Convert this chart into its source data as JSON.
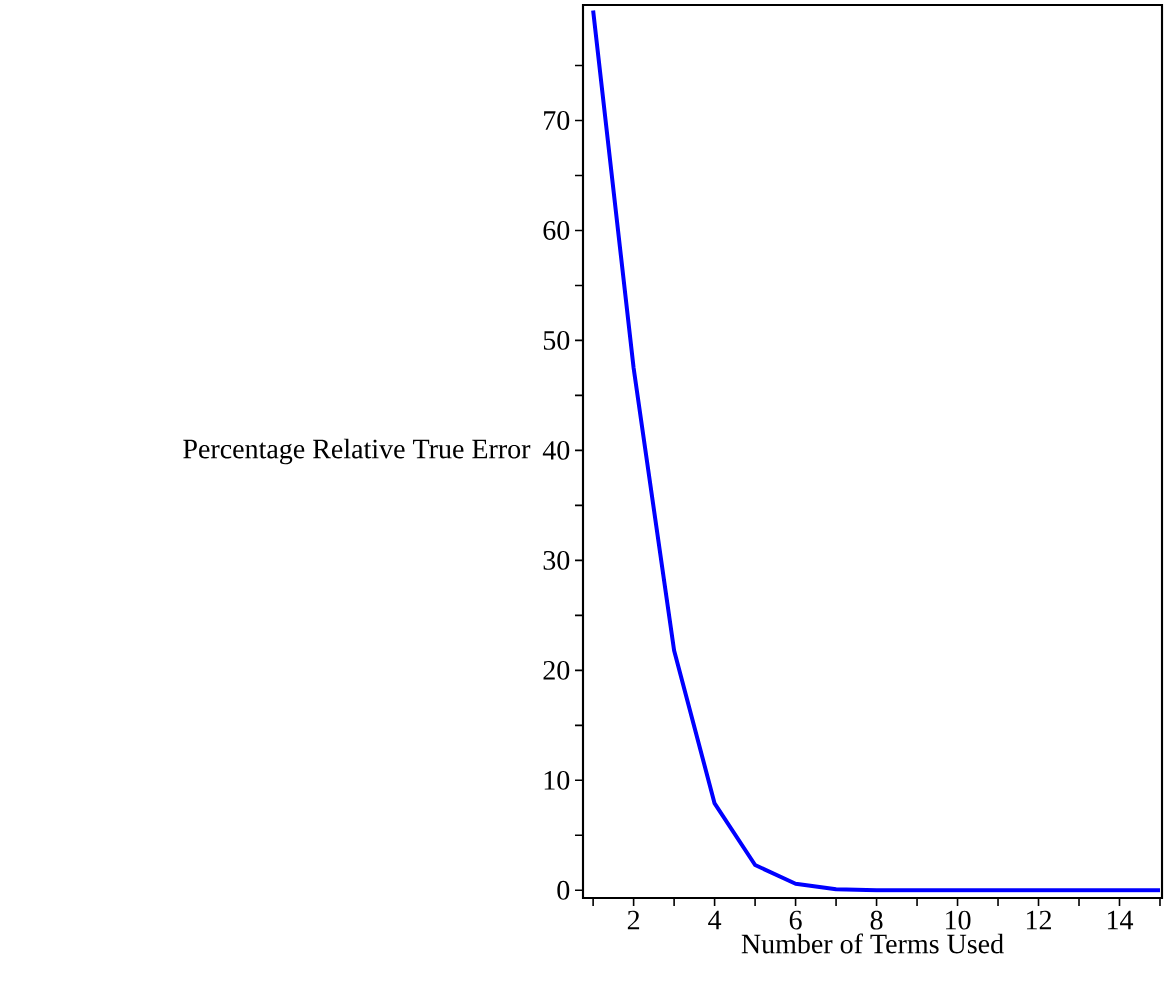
{
  "chart_data": {
    "type": "line",
    "xlabel": "Number of Terms Used",
    "ylabel": "Percentage Relative True Error",
    "x": [
      1,
      2,
      3,
      4,
      5,
      6,
      7,
      8,
      9,
      10,
      11,
      12,
      13,
      14,
      15
    ],
    "series": [
      {
        "color": "#0000ff",
        "values": [
          80,
          47.5,
          21.8,
          7.9,
          2.3,
          0.6,
          0.1,
          0,
          0,
          0,
          0,
          0,
          0,
          0,
          0
        ]
      }
    ],
    "xlim": [
      0.75,
      15.05
    ],
    "ylim": [
      -0.7,
      80.5
    ],
    "xticks": [
      {
        "value": 1,
        "label": null
      },
      2,
      {
        "value": 3,
        "label": null
      },
      4,
      {
        "value": 5,
        "label": null
      },
      6,
      {
        "value": 7,
        "label": null
      },
      8,
      {
        "value": 9,
        "label": null
      },
      10,
      {
        "value": 11,
        "label": null
      },
      12,
      {
        "value": 13,
        "label": null
      },
      14,
      {
        "value": 15,
        "label": null
      }
    ],
    "yticks": [
      0,
      {
        "value": 5,
        "label": null
      },
      10,
      {
        "value": 15,
        "label": null
      },
      20,
      {
        "value": 25,
        "label": null
      },
      30,
      {
        "value": 35,
        "label": null
      },
      40,
      {
        "value": 45,
        "label": null
      },
      50,
      {
        "value": 55,
        "label": null
      },
      60,
      {
        "value": 65,
        "label": null
      },
      70,
      {
        "value": 75,
        "label": null
      }
    ]
  }
}
